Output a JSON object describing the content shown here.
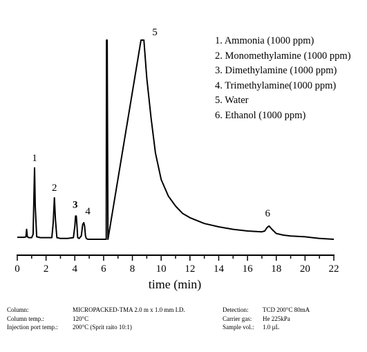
{
  "chart_data": {
    "type": "line",
    "xlabel": "time (min)",
    "ylabel": "",
    "xlim": [
      0,
      22
    ],
    "ticks": [
      "0",
      "2",
      "4",
      "6",
      "8",
      "10",
      "12",
      "14",
      "16",
      "18",
      "20",
      "22"
    ],
    "grid": false,
    "trace": {
      "x": [
        0.0,
        0.5,
        0.6,
        0.65,
        0.7,
        0.8,
        1.0,
        1.1,
        1.15,
        1.2,
        1.25,
        1.35,
        1.6,
        2.0,
        2.4,
        2.5,
        2.58,
        2.65,
        2.75,
        3.0,
        3.5,
        3.9,
        4.0,
        4.05,
        4.1,
        4.15,
        4.2,
        4.3,
        4.45,
        4.55,
        4.62,
        4.68,
        4.74,
        4.8,
        4.9,
        5.0,
        5.5,
        6.0,
        6.18,
        6.2,
        6.25,
        6.3,
        8.6,
        8.65,
        8.8,
        9.0,
        9.3,
        9.6,
        10.0,
        10.5,
        11.0,
        11.5,
        12.0,
        13.0,
        14.0,
        15.0,
        16.0,
        17.0,
        17.2,
        17.35,
        17.5,
        17.7,
        18.0,
        18.5,
        19.0,
        20.0,
        20.5,
        21.0,
        22.0
      ],
      "y": [
        0.12,
        0.12,
        0.15,
        0.6,
        0.15,
        0.1,
        0.1,
        0.3,
        2.2,
        4.3,
        2.0,
        0.15,
        0.1,
        0.1,
        0.1,
        1.0,
        2.5,
        1.2,
        0.1,
        0.05,
        0.05,
        0.1,
        0.8,
        1.4,
        1.4,
        0.8,
        0.1,
        0.05,
        0.2,
        0.9,
        1.0,
        0.8,
        0.2,
        0.05,
        0.0,
        0.0,
        0.0,
        0.0,
        0.0,
        12.0,
        12.0,
        0.0,
        12.0,
        12.0,
        12.0,
        9.7,
        7.3,
        5.2,
        3.6,
        2.6,
        2.0,
        1.55,
        1.3,
        0.95,
        0.75,
        0.6,
        0.5,
        0.45,
        0.5,
        0.7,
        0.8,
        0.6,
        0.35,
        0.25,
        0.2,
        0.15,
        0.1,
        0.05,
        0.0
      ]
    },
    "peak_labels": [
      {
        "label": "1",
        "x": 1.2,
        "y": 4.3
      },
      {
        "label": "2",
        "x": 2.58,
        "y": 2.5
      },
      {
        "label": "3",
        "x": 4.12,
        "y": 1.4
      },
      {
        "label": "4",
        "x": 4.62,
        "y": 1.0
      },
      {
        "label": "5",
        "x": 9.5,
        "y": 12.0
      },
      {
        "label": "6",
        "x": 17.4,
        "y": 0.8
      }
    ],
    "legend": [
      "1. Ammonia (1000 ppm)",
      "2. Monomethylamine (1000 ppm)",
      "3. Dimethylamine (1000 ppm)",
      "4. Trimethylamine(1000 ppm)",
      "5. Water",
      "6. Ethanol (1000 ppm)"
    ],
    "legend_position": "top-right"
  },
  "conditions": [
    {
      "label": "Column:",
      "value": "MICROPACKED-TMA 2.0 m x 1.0 mm I.D."
    },
    {
      "label": "Column temp.:",
      "value": "120°C"
    },
    {
      "label": "Injection port temp.:",
      "value": "200°C (Sprit raito 10:1)"
    },
    {
      "label": "Detection:",
      "value": "TCD 200°C 80mA"
    },
    {
      "label": "Carrier gas:",
      "value": "He 225kPa"
    },
    {
      "label": "Sample vol.:",
      "value": "1.0 µL"
    }
  ]
}
